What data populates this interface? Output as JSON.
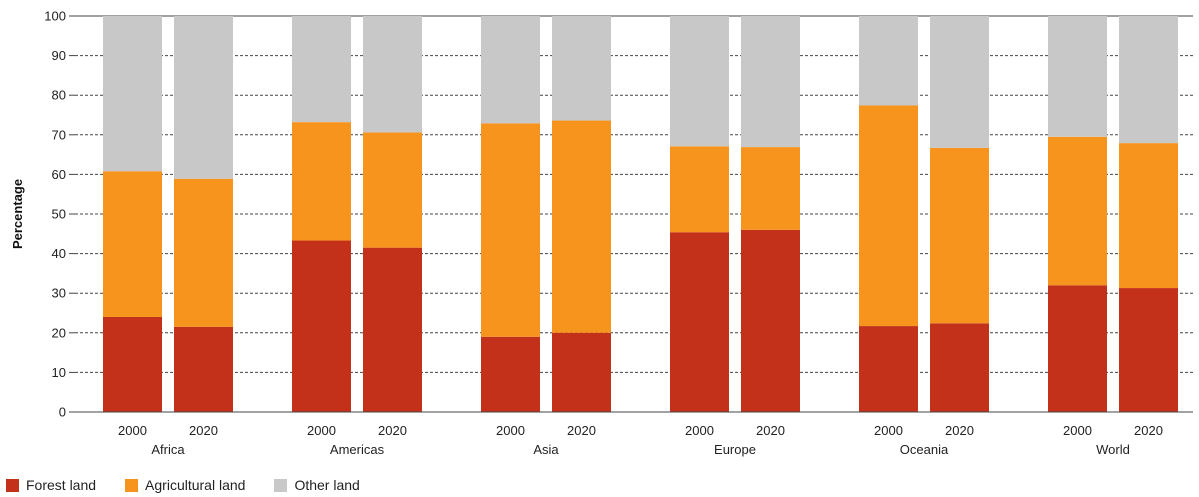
{
  "chart_data": {
    "type": "bar",
    "stacked": true,
    "ylabel": "Percentage",
    "ylim": [
      0,
      100
    ],
    "yticks": [
      0,
      10,
      20,
      30,
      40,
      50,
      60,
      70,
      80,
      90,
      100
    ],
    "grid": true,
    "legend_position": "bottom-left",
    "groups": [
      {
        "name": "Africa",
        "bars": [
          {
            "year": "2000",
            "forest": 24.0,
            "agricultural": 36.8,
            "other": 39.2
          },
          {
            "year": "2020",
            "forest": 21.5,
            "agricultural": 37.4,
            "other": 41.1
          }
        ]
      },
      {
        "name": "Americas",
        "bars": [
          {
            "year": "2000",
            "forest": 43.3,
            "agricultural": 29.9,
            "other": 26.8
          },
          {
            "year": "2020",
            "forest": 41.5,
            "agricultural": 29.1,
            "other": 29.4
          }
        ]
      },
      {
        "name": "Asia",
        "bars": [
          {
            "year": "2000",
            "forest": 19.0,
            "agricultural": 53.9,
            "other": 27.1
          },
          {
            "year": "2020",
            "forest": 20.0,
            "agricultural": 53.6,
            "other": 26.4
          }
        ]
      },
      {
        "name": "Europe",
        "bars": [
          {
            "year": "2000",
            "forest": 45.4,
            "agricultural": 21.7,
            "other": 32.9
          },
          {
            "year": "2020",
            "forest": 46.0,
            "agricultural": 20.9,
            "other": 33.1
          }
        ]
      },
      {
        "name": "Oceania",
        "bars": [
          {
            "year": "2000",
            "forest": 21.7,
            "agricultural": 55.7,
            "other": 22.6
          },
          {
            "year": "2020",
            "forest": 22.4,
            "agricultural": 44.3,
            "other": 33.3
          }
        ]
      },
      {
        "name": "World",
        "bars": [
          {
            "year": "2000",
            "forest": 32.0,
            "agricultural": 37.5,
            "other": 30.5
          },
          {
            "year": "2020",
            "forest": 31.3,
            "agricultural": 36.6,
            "other": 32.1
          }
        ]
      }
    ],
    "series": [
      {
        "key": "forest",
        "name": "Forest land",
        "color": "#c4311a"
      },
      {
        "key": "agricultural",
        "name": "Agricultural land",
        "color": "#f7941d"
      },
      {
        "key": "other",
        "name": "Other land",
        "color": "#c8c8c8"
      }
    ]
  }
}
